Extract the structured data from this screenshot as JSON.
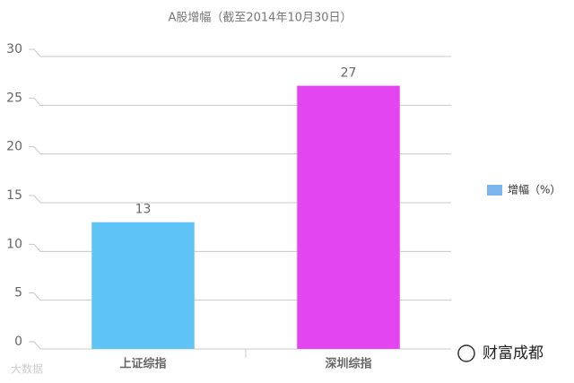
{
  "chart_data": {
    "type": "bar",
    "title": "A股增幅（截至2014年10月30日）",
    "categories": [
      "上证综指",
      "深圳综指"
    ],
    "series": [
      {
        "name": "增幅（%）",
        "color": "#7cb5ec",
        "values": [
          13,
          27
        ]
      }
    ],
    "bar_colors": [
      "#5ec4f5",
      "#e346f0"
    ],
    "ylim": [
      0,
      30
    ],
    "yticks": [
      0,
      5,
      10,
      15,
      20,
      25,
      30
    ],
    "grid": true,
    "legend": "right",
    "watermarks": [
      "大数据",
      "财富成都"
    ]
  }
}
